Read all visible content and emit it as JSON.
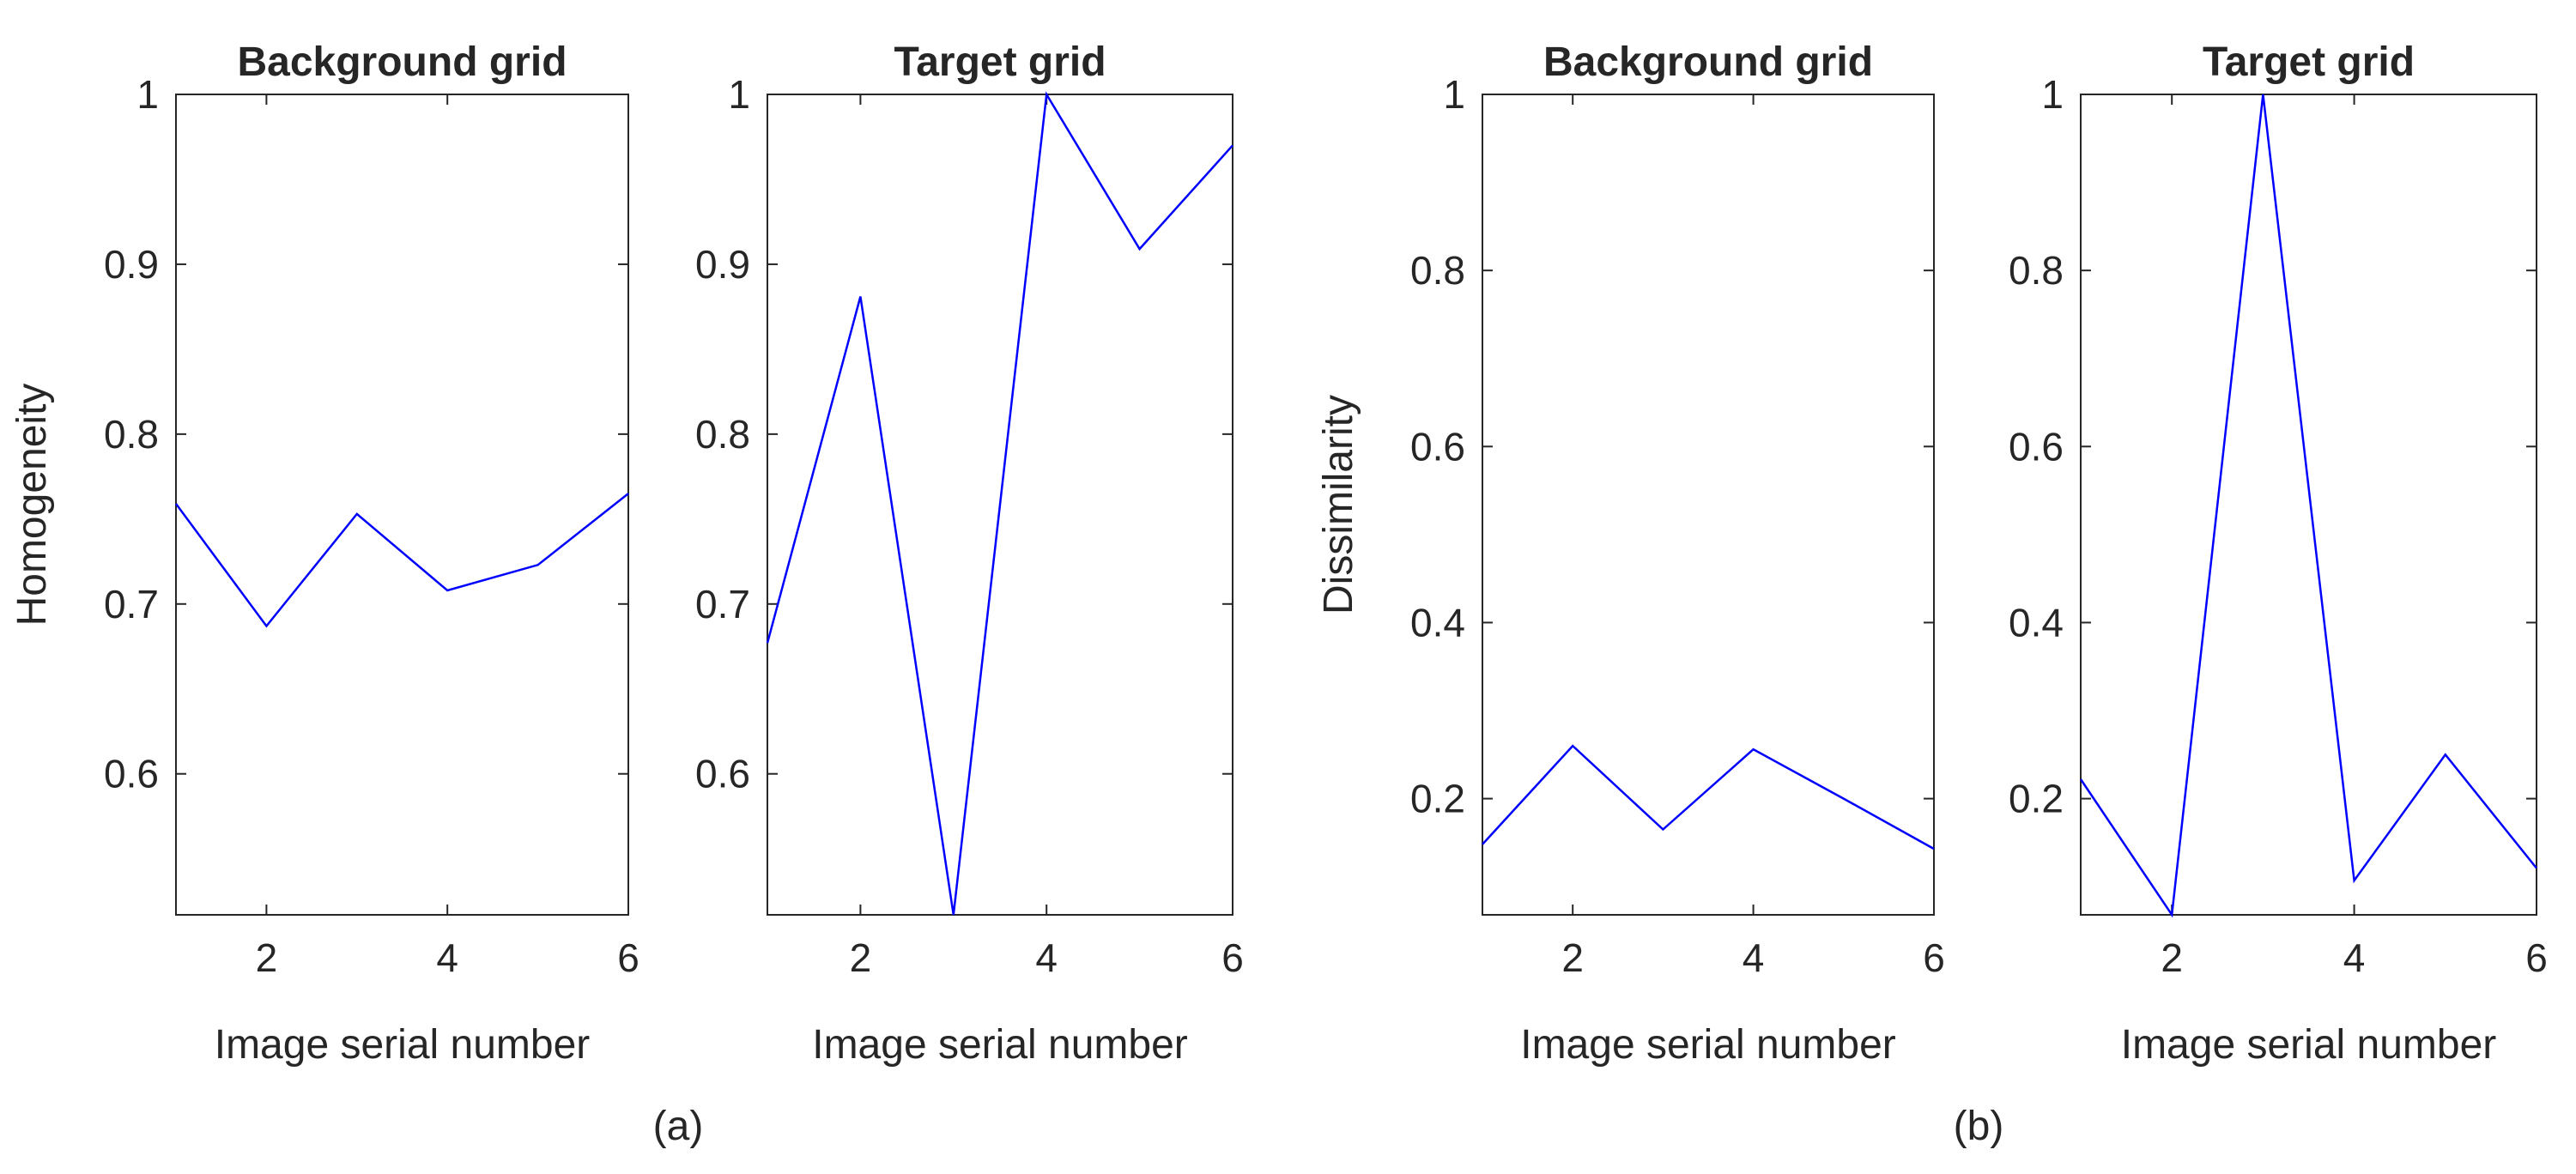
{
  "chart_data": [
    {
      "type": "line",
      "title": "Background grid",
      "xlabel": "Image serial number",
      "ylabel": "Homogeneity",
      "xlim": [
        1,
        6
      ],
      "ylim": [
        0.517,
        1.0
      ],
      "xticks": [
        2,
        4,
        6
      ],
      "yticks": [
        0.6,
        0.7,
        0.8,
        0.9,
        1
      ],
      "ytick_labels": [
        "0.6",
        "0.7",
        "0.8",
        "0.9",
        "1"
      ],
      "grid": false,
      "color": "#0000ff",
      "x": [
        1,
        2,
        3,
        4,
        5,
        6
      ],
      "y": [
        0.759,
        0.687,
        0.753,
        0.708,
        0.723,
        0.765
      ]
    },
    {
      "type": "line",
      "title": "Target grid",
      "xlabel": "Image serial number",
      "ylabel": "",
      "xlim": [
        1,
        6
      ],
      "ylim": [
        0.517,
        1.0
      ],
      "xticks": [
        2,
        4,
        6
      ],
      "yticks": [
        0.6,
        0.7,
        0.8,
        0.9,
        1
      ],
      "ytick_labels": [
        "0.6",
        "0.7",
        "0.8",
        "0.9",
        "1"
      ],
      "grid": false,
      "color": "#0000ff",
      "x": [
        1,
        2,
        3,
        4,
        5,
        6
      ],
      "y": [
        0.677,
        0.881,
        0.517,
        1.0,
        0.909,
        0.97
      ]
    },
    {
      "type": "line",
      "title": "Background grid",
      "xlabel": "Image serial number",
      "ylabel": "Dissimilarity",
      "xlim": [
        1,
        6
      ],
      "ylim": [
        0.068,
        1.0
      ],
      "xticks": [
        2,
        4,
        6
      ],
      "yticks": [
        0.2,
        0.4,
        0.6,
        0.8,
        1
      ],
      "ytick_labels": [
        "0.2",
        "0.4",
        "0.6",
        "0.8",
        "1"
      ],
      "grid": false,
      "color": "#0000ff",
      "x": [
        1,
        2,
        3,
        4,
        5,
        6
      ],
      "y": [
        0.148,
        0.26,
        0.165,
        0.256,
        0.2,
        0.143
      ]
    },
    {
      "type": "line",
      "title": "Target grid",
      "xlabel": "Image serial number",
      "ylabel": "",
      "xlim": [
        1,
        6
      ],
      "ylim": [
        0.068,
        1.0
      ],
      "xticks": [
        2,
        4,
        6
      ],
      "yticks": [
        0.2,
        0.4,
        0.6,
        0.8,
        1
      ],
      "ytick_labels": [
        "0.2",
        "0.4",
        "0.6",
        "0.8",
        "1"
      ],
      "grid": false,
      "color": "#0000ff",
      "x": [
        1,
        2,
        3,
        4,
        5,
        6
      ],
      "y": [
        0.222,
        0.068,
        1.0,
        0.107,
        0.25,
        0.121
      ]
    }
  ],
  "panel_labels": [
    "(a)",
    "(b)"
  ]
}
